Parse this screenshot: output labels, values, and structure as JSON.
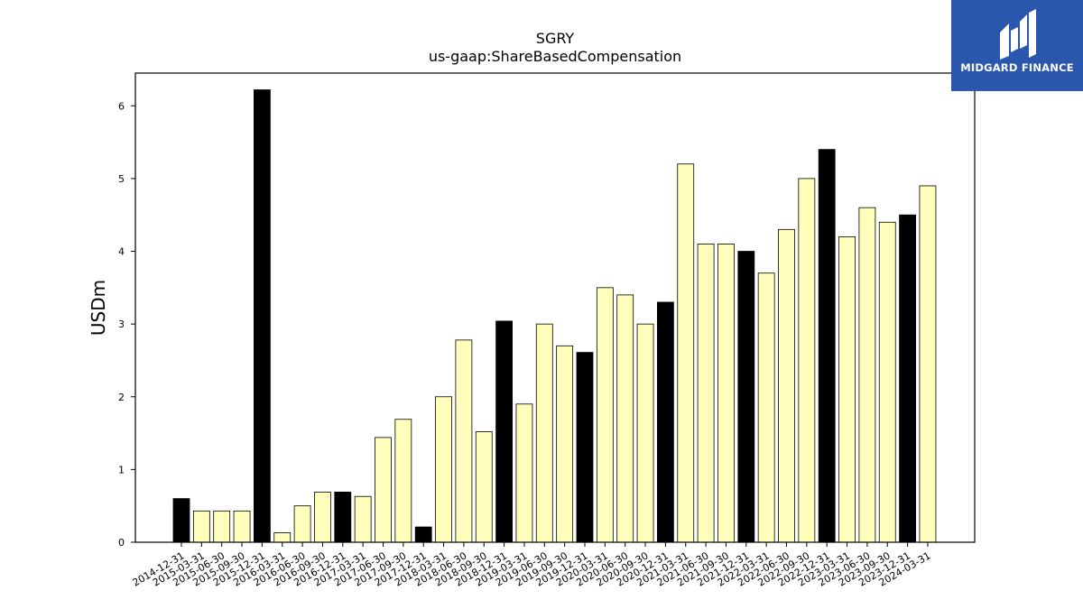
{
  "logo": {
    "text": "MIDGARD FINANCE"
  },
  "colors": {
    "annual": "#000000",
    "quarterly": "#ffffbb",
    "logo_bg": "#2a57ad"
  },
  "chart_data": {
    "type": "bar",
    "title": "SGRY",
    "subtitle": "us-gaap:ShareBasedCompensation",
    "xlabel": "",
    "ylabel": "USDm",
    "ylim": [
      0,
      6.45
    ],
    "yticks": [
      0,
      1,
      2,
      3,
      4,
      5,
      6
    ],
    "grid": false,
    "legend": "none",
    "categories": [
      "2014-12-31",
      "2015-03-31",
      "2015-06-30",
      "2015-09-30",
      "2015-12-31",
      "2016-03-31",
      "2016-06-30",
      "2016-09-30",
      "2016-12-31",
      "2017-03-31",
      "2017-06-30",
      "2017-09-30",
      "2017-12-31",
      "2018-03-31",
      "2018-06-30",
      "2018-09-30",
      "2018-12-31",
      "2019-03-31",
      "2019-06-30",
      "2019-09-30",
      "2019-12-31",
      "2020-03-31",
      "2020-06-30",
      "2020-09-30",
      "2020-12-31",
      "2021-03-31",
      "2021-06-30",
      "2021-09-30",
      "2021-12-31",
      "2022-03-31",
      "2022-06-30",
      "2022-09-30",
      "2022-12-31",
      "2023-03-31",
      "2023-06-30",
      "2023-09-30",
      "2023-12-31",
      "2024-03-31"
    ],
    "values": [
      0.6,
      0.43,
      0.43,
      0.43,
      6.22,
      0.13,
      0.5,
      0.69,
      0.69,
      0.63,
      1.44,
      1.69,
      0.21,
      2.0,
      2.78,
      1.52,
      3.04,
      1.9,
      3.0,
      2.7,
      2.61,
      3.5,
      3.4,
      3.0,
      3.3,
      5.2,
      4.1,
      4.1,
      4.0,
      3.7,
      4.3,
      5.0,
      5.4,
      4.2,
      4.6,
      4.4,
      4.5,
      4.9
    ],
    "annual": [
      true,
      false,
      false,
      false,
      true,
      false,
      false,
      false,
      true,
      false,
      false,
      false,
      true,
      false,
      false,
      false,
      true,
      false,
      false,
      false,
      true,
      false,
      false,
      false,
      true,
      false,
      false,
      false,
      true,
      false,
      false,
      false,
      true,
      false,
      false,
      false,
      true,
      false
    ]
  }
}
